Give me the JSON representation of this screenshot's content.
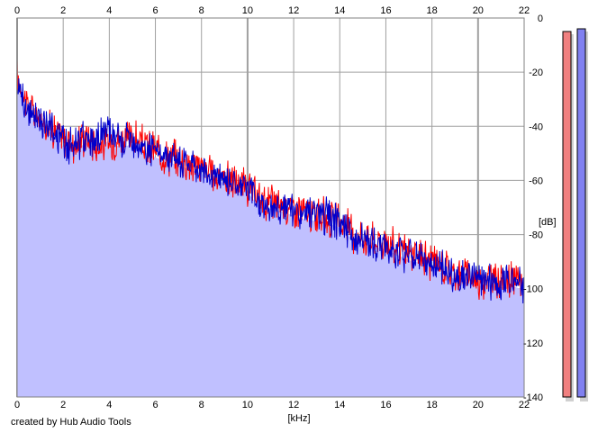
{
  "credit": "created by Hub Audio Tools",
  "chart_data": {
    "type": "line",
    "title": "",
    "xlabel": "[kHz]",
    "ylabel": "[dB]",
    "xlim": [
      0,
      22
    ],
    "ylim": [
      -140,
      0
    ],
    "x_ticks": [
      0,
      2,
      4,
      6,
      8,
      10,
      12,
      14,
      16,
      18,
      20,
      22
    ],
    "y_ticks": [
      0,
      -20,
      -40,
      -60,
      -80,
      -100,
      -120,
      -140
    ],
    "x_tick_labels": [
      "0",
      "2",
      "4",
      "6",
      "8",
      "10",
      "12",
      "14",
      "16",
      "18",
      "20",
      "22"
    ],
    "y_tick_labels": [
      "0",
      "-20",
      "-40",
      "-60",
      "-80",
      "-100",
      "-120",
      "-140"
    ],
    "grid": true,
    "fill_color": "#c0c0ff",
    "x": [
      0,
      0.5,
      1,
      1.5,
      2,
      2.5,
      3,
      3.5,
      4,
      4.5,
      5,
      5.5,
      6,
      6.5,
      7,
      7.5,
      8,
      8.5,
      9,
      9.5,
      10,
      10.5,
      11,
      11.5,
      12,
      12.5,
      13,
      13.5,
      14,
      14.5,
      15,
      15.5,
      16,
      16.5,
      17,
      17.5,
      18,
      18.5,
      19,
      19.5,
      20,
      20.5,
      21,
      21.5,
      22
    ],
    "series": [
      {
        "color": "#ff0000",
        "values": [
          -22,
          -33,
          -38,
          -40,
          -45,
          -47,
          -44,
          -47,
          -46,
          -45,
          -44,
          -47,
          -49,
          -51,
          -52,
          -54,
          -55,
          -58,
          -59,
          -61,
          -63,
          -67,
          -68,
          -69,
          -70,
          -72,
          -73,
          -74,
          -75,
          -79,
          -81,
          -82,
          -83,
          -85,
          -87,
          -88,
          -90,
          -92,
          -94,
          -95,
          -97,
          -96,
          -97,
          -97,
          -98
        ]
      },
      {
        "color": "#0000cc",
        "values": [
          -26,
          -34,
          -39,
          -41,
          -46,
          -47,
          -44,
          -46,
          -40,
          -47,
          -45,
          -48,
          -50,
          -51,
          -53,
          -54,
          -56,
          -58,
          -59,
          -61,
          -62,
          -68,
          -69,
          -70,
          -72,
          -73,
          -73,
          -74,
          -76,
          -80,
          -82,
          -83,
          -84,
          -86,
          -88,
          -89,
          -91,
          -93,
          -95,
          -96,
          -97,
          -97,
          -98,
          -97,
          -99
        ]
      }
    ],
    "level_meters": [
      {
        "channel": "left",
        "color": "#f08080",
        "level_db": -3
      },
      {
        "channel": "right",
        "color": "#8080f0",
        "level_db": -2
      }
    ]
  }
}
